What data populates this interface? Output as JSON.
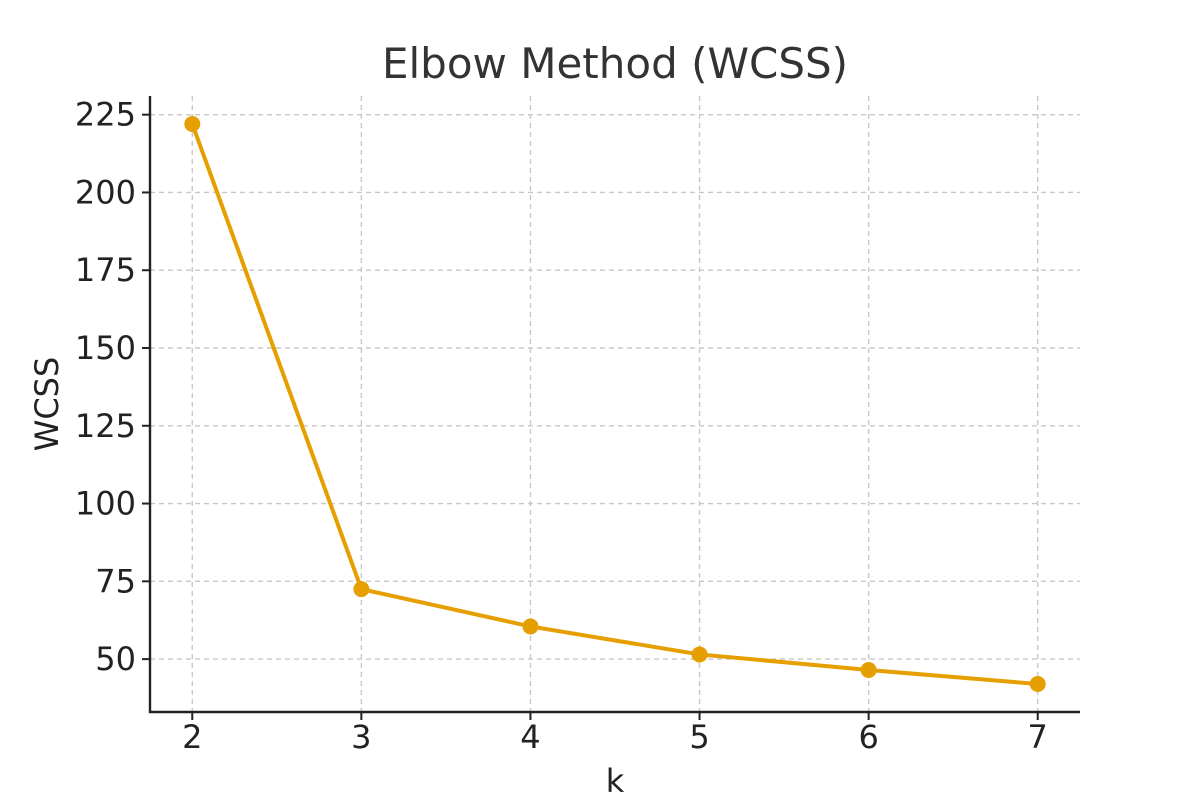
{
  "chart_data": {
    "type": "line",
    "title": "Elbow Method (WCSS)",
    "xlabel": "k",
    "ylabel": "WCSS",
    "x": [
      2,
      3,
      4,
      5,
      6,
      7
    ],
    "series": [
      {
        "values": [
          222,
          72.5,
          60.5,
          51.5,
          46.5,
          42
        ],
        "color": "#E69F00",
        "marker": "circle"
      }
    ],
    "xticks": [
      2,
      3,
      4,
      5,
      6,
      7
    ],
    "xtick_labels": [
      "2",
      "3",
      "4",
      "5",
      "6",
      "7"
    ],
    "yticks": [
      50,
      75,
      100,
      125,
      150,
      175,
      200,
      225
    ],
    "ytick_labels": [
      "50",
      "75",
      "100",
      "125",
      "150",
      "175",
      "200",
      "225"
    ],
    "xlim": [
      1.75,
      7.25
    ],
    "ylim": [
      33,
      231
    ],
    "grid": true,
    "grid_style": "dashed",
    "axes_spines": [
      "left",
      "bottom"
    ]
  }
}
